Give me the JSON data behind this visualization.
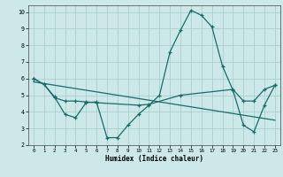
{
  "xlabel": "Humidex (Indice chaleur)",
  "xlim": [
    -0.5,
    23.5
  ],
  "ylim": [
    2,
    10.4
  ],
  "yticks": [
    2,
    3,
    4,
    5,
    6,
    7,
    8,
    9,
    10
  ],
  "xticks": [
    0,
    1,
    2,
    3,
    4,
    5,
    6,
    7,
    8,
    9,
    10,
    11,
    12,
    13,
    14,
    15,
    16,
    17,
    18,
    19,
    20,
    21,
    22,
    23
  ],
  "bg_color": "#cce8e8",
  "grid_color": "#aacfcf",
  "line_color": "#1a6b6b",
  "line1_x": [
    0,
    1,
    2,
    3,
    4,
    5,
    6,
    7,
    8,
    9,
    10,
    11,
    12,
    13,
    14,
    15,
    16,
    17,
    18,
    19,
    20,
    21,
    22,
    23
  ],
  "line1_y": [
    6.0,
    5.65,
    4.9,
    3.85,
    3.65,
    4.55,
    4.6,
    2.45,
    2.45,
    3.2,
    3.85,
    4.4,
    5.0,
    7.6,
    8.9,
    10.1,
    9.8,
    9.1,
    6.75,
    5.3,
    3.2,
    2.8,
    4.4,
    5.6
  ],
  "line2_x": [
    0,
    1,
    2,
    3,
    4,
    5,
    6,
    10,
    11,
    14,
    19,
    20,
    21,
    22,
    23
  ],
  "line2_y": [
    6.0,
    5.65,
    4.85,
    4.65,
    4.65,
    4.6,
    4.55,
    4.4,
    4.45,
    5.0,
    5.35,
    4.65,
    4.65,
    5.35,
    5.6
  ],
  "line3_x": [
    0,
    23
  ],
  "line3_y": [
    5.8,
    3.5
  ]
}
